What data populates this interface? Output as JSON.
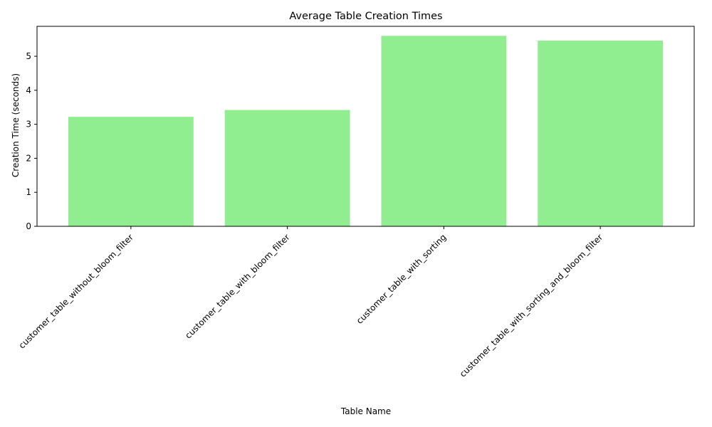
{
  "chart_data": {
    "type": "bar",
    "title": "Average Table Creation Times",
    "xlabel": "Table Name",
    "ylabel": "Creation Time (seconds)",
    "categories": [
      "customer_table_without_bloom_filter",
      "customer_table_with_bloom_filter",
      "customer_table_with_sorting",
      "customer_table_with_sorting_and_bloom_filter"
    ],
    "values": [
      3.22,
      3.42,
      5.6,
      5.46
    ],
    "ylim": [
      0,
      5.88
    ],
    "yticks": [
      0,
      1,
      2,
      3,
      4,
      5
    ],
    "bar_color": "#90ee90",
    "grid": false,
    "legend": "none"
  }
}
